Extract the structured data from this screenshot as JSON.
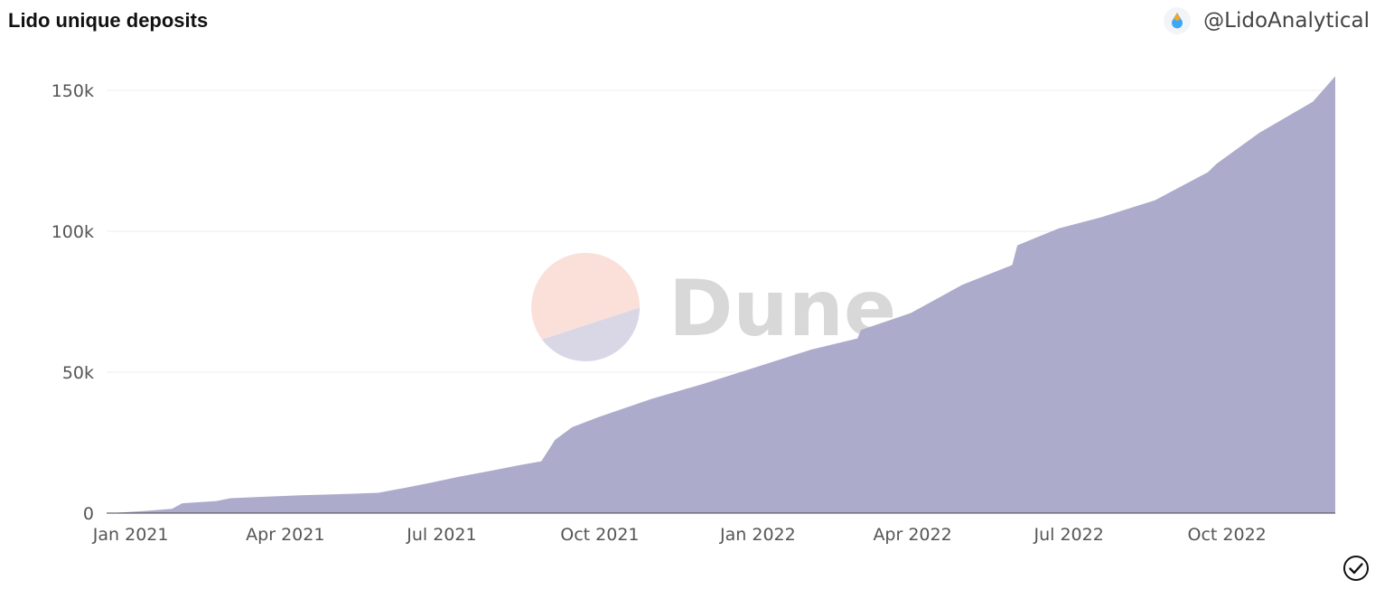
{
  "header": {
    "title": "Lido unique deposits",
    "author": "@LidoAnalytical"
  },
  "watermark": {
    "text": "Dune"
  },
  "colors": {
    "area_fill": "#aaa9cb",
    "watermark_top": "#fbe0da",
    "watermark_bottom": "#d9d7e6"
  },
  "chart_data": {
    "type": "area",
    "title": "Lido unique deposits",
    "xlabel": "",
    "ylabel": "",
    "x_range": [
      "2020-12-18",
      "2022-12-03"
    ],
    "ylim": [
      0,
      150000
    ],
    "y_ticks": [
      {
        "value": 0,
        "label": "0"
      },
      {
        "value": 50000,
        "label": "50k"
      },
      {
        "value": 100000,
        "label": "100k"
      },
      {
        "value": 150000,
        "label": "150k"
      }
    ],
    "x_ticks": [
      {
        "date": "2021-01-01",
        "label": "Jan 2021"
      },
      {
        "date": "2021-04-01",
        "label": "Apr 2021"
      },
      {
        "date": "2021-07-01",
        "label": "Jul 2021"
      },
      {
        "date": "2021-10-01",
        "label": "Oct 2021"
      },
      {
        "date": "2022-01-01",
        "label": "Jan 2022"
      },
      {
        "date": "2022-04-01",
        "label": "Apr 2022"
      },
      {
        "date": "2022-07-01",
        "label": "Jul 2022"
      },
      {
        "date": "2022-10-01",
        "label": "Oct 2022"
      }
    ],
    "grid": true,
    "series": [
      {
        "points": [
          [
            "2020-12-18",
            0
          ],
          [
            "2020-12-28",
            300
          ],
          [
            "2021-01-10",
            800
          ],
          [
            "2021-01-25",
            1500
          ],
          [
            "2021-01-31",
            3500
          ],
          [
            "2021-02-20",
            4300
          ],
          [
            "2021-02-28",
            5300
          ],
          [
            "2021-03-20",
            5800
          ],
          [
            "2021-04-10",
            6300
          ],
          [
            "2021-05-01",
            6700
          ],
          [
            "2021-05-25",
            7200
          ],
          [
            "2021-06-10",
            9000
          ],
          [
            "2021-06-25",
            10800
          ],
          [
            "2021-07-10",
            12800
          ],
          [
            "2021-07-31",
            15200
          ],
          [
            "2021-08-15",
            17000
          ],
          [
            "2021-08-28",
            18400
          ],
          [
            "2021-09-05",
            26000
          ],
          [
            "2021-09-15",
            30500
          ],
          [
            "2021-09-30",
            34000
          ],
          [
            "2021-10-31",
            40500
          ],
          [
            "2021-12-01",
            46000
          ],
          [
            "2022-01-01",
            52000
          ],
          [
            "2022-02-01",
            58000
          ],
          [
            "2022-02-28",
            62000
          ],
          [
            "2022-03-02",
            65000
          ],
          [
            "2022-03-31",
            71000
          ],
          [
            "2022-04-30",
            81000
          ],
          [
            "2022-05-29",
            88000
          ],
          [
            "2022-06-01",
            95000
          ],
          [
            "2022-06-25",
            101000
          ],
          [
            "2022-07-20",
            105000
          ],
          [
            "2022-08-20",
            111000
          ],
          [
            "2022-09-20",
            121000
          ],
          [
            "2022-09-25",
            124000
          ],
          [
            "2022-10-20",
            135000
          ],
          [
            "2022-11-20",
            146000
          ],
          [
            "2022-12-03",
            155000
          ]
        ]
      }
    ]
  }
}
